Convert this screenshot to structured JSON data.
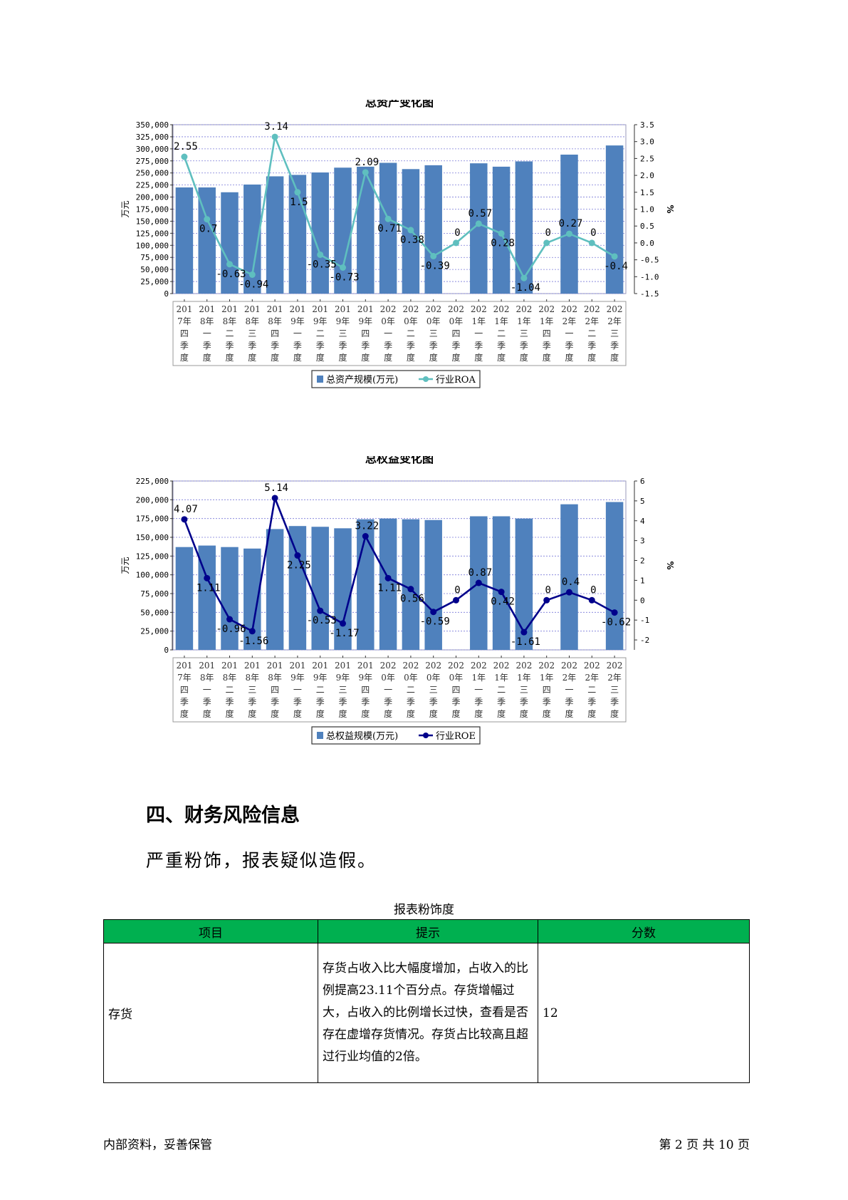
{
  "chart_data": [
    {
      "type": "bar",
      "title": "总资产变化图",
      "ylabel": "万元",
      "y2label": "%",
      "ylim": [
        0,
        350000
      ],
      "y2lim": [
        -1.5,
        3.5
      ],
      "y_ticks": [
        "0",
        "25,000",
        "50,000",
        "75,000",
        "100,000",
        "125,000",
        "150,000",
        "175,000",
        "200,000",
        "225,000",
        "250,000",
        "275,000",
        "300,000",
        "325,000",
        "350,000"
      ],
      "y2_ticks": [
        "-1.5",
        "-1.0",
        "-0.5",
        "0.0",
        "0.5",
        "1.0",
        "1.5",
        "2.0",
        "2.5",
        "3.0",
        "3.5"
      ],
      "categories": [
        [
          "201",
          "7年",
          "四",
          "季",
          "度"
        ],
        [
          "201",
          "8年",
          "一",
          "季",
          "度"
        ],
        [
          "201",
          "8年",
          "二",
          "季",
          "度"
        ],
        [
          "201",
          "8年",
          "三",
          "季",
          "度"
        ],
        [
          "201",
          "8年",
          "四",
          "季",
          "度"
        ],
        [
          "201",
          "9年",
          "一",
          "季",
          "度"
        ],
        [
          "201",
          "9年",
          "二",
          "季",
          "度"
        ],
        [
          "201",
          "9年",
          "三",
          "季",
          "度"
        ],
        [
          "201",
          "9年",
          "四",
          "季",
          "度"
        ],
        [
          "202",
          "0年",
          "一",
          "季",
          "度"
        ],
        [
          "202",
          "0年",
          "二",
          "季",
          "度"
        ],
        [
          "202",
          "0年",
          "三",
          "季",
          "度"
        ],
        [
          "202",
          "0年",
          "四",
          "季",
          "度"
        ],
        [
          "202",
          "1年",
          "一",
          "季",
          "度"
        ],
        [
          "202",
          "1年",
          "二",
          "季",
          "度"
        ],
        [
          "202",
          "1年",
          "三",
          "季",
          "度"
        ],
        [
          "202",
          "1年",
          "四",
          "季",
          "度"
        ],
        [
          "202",
          "2年",
          "一",
          "季",
          "度"
        ],
        [
          "202",
          "2年",
          "二",
          "季",
          "度"
        ],
        [
          "202",
          "2年",
          "三",
          "季",
          "度"
        ]
      ],
      "series": [
        {
          "name": "总资产规模(万元)",
          "type": "bar",
          "color": "#4f81bd",
          "values": [
            220000,
            220000,
            210000,
            226000,
            243000,
            246000,
            251000,
            261000,
            263000,
            271000,
            258000,
            266000,
            null,
            270000,
            263000,
            274000,
            null,
            288000,
            null,
            307000
          ]
        },
        {
          "name": "行业ROA",
          "type": "line",
          "axis": "right",
          "color": "#5fbfbf",
          "values": [
            2.55,
            0.7,
            -0.63,
            -0.94,
            3.14,
            1.5,
            -0.35,
            -0.73,
            2.09,
            0.71,
            0.38,
            -0.39,
            0,
            0.57,
            0.28,
            -1.04,
            0,
            0.27,
            0,
            -0.4
          ],
          "labels": [
            "2.55",
            "0.7",
            "-0.63",
            "-0.94",
            "3.14",
            "1.5",
            "-0.35",
            "-0.73",
            "2.09",
            "0.71",
            "0.38",
            "-0.39",
            "0",
            "0.57",
            "0.28",
            "-1.04",
            "0",
            "0.27",
            "0",
            "-0.4"
          ]
        }
      ],
      "legend": "bottom",
      "grid": true
    },
    {
      "type": "bar",
      "title": "总权益变化图",
      "ylabel": "万元",
      "y2label": "%",
      "ylim": [
        0,
        225000
      ],
      "y2lim": [
        -2.5,
        6
      ],
      "y_ticks": [
        "0",
        "25,000",
        "50,000",
        "75,000",
        "100,000",
        "125,000",
        "150,000",
        "175,000",
        "200,000",
        "225,000"
      ],
      "y2_ticks": [
        "-2",
        "-1",
        "0",
        "1",
        "2",
        "3",
        "4",
        "5",
        "6"
      ],
      "categories": [
        [
          "201",
          "7年",
          "四",
          "季",
          "度"
        ],
        [
          "201",
          "8年",
          "一",
          "季",
          "度"
        ],
        [
          "201",
          "8年",
          "二",
          "季",
          "度"
        ],
        [
          "201",
          "8年",
          "三",
          "季",
          "度"
        ],
        [
          "201",
          "8年",
          "四",
          "季",
          "度"
        ],
        [
          "201",
          "9年",
          "一",
          "季",
          "度"
        ],
        [
          "201",
          "9年",
          "二",
          "季",
          "度"
        ],
        [
          "201",
          "9年",
          "三",
          "季",
          "度"
        ],
        [
          "201",
          "9年",
          "四",
          "季",
          "度"
        ],
        [
          "202",
          "0年",
          "一",
          "季",
          "度"
        ],
        [
          "202",
          "0年",
          "二",
          "季",
          "度"
        ],
        [
          "202",
          "0年",
          "三",
          "季",
          "度"
        ],
        [
          "202",
          "0年",
          "四",
          "季",
          "度"
        ],
        [
          "202",
          "1年",
          "一",
          "季",
          "度"
        ],
        [
          "202",
          "1年",
          "二",
          "季",
          "度"
        ],
        [
          "202",
          "1年",
          "三",
          "季",
          "度"
        ],
        [
          "202",
          "1年",
          "四",
          "季",
          "度"
        ],
        [
          "202",
          "2年",
          "一",
          "季",
          "度"
        ],
        [
          "202",
          "2年",
          "二",
          "季",
          "度"
        ],
        [
          "202",
          "2年",
          "三",
          "季",
          "度"
        ]
      ],
      "series": [
        {
          "name": "总权益规模(万元)",
          "type": "bar",
          "color": "#4f81bd",
          "values": [
            137000,
            139000,
            137000,
            135000,
            161000,
            165000,
            164000,
            162000,
            174000,
            175000,
            174000,
            173000,
            null,
            178000,
            178000,
            175000,
            null,
            194000,
            null,
            197000
          ]
        },
        {
          "name": "行业ROE",
          "type": "line",
          "axis": "right",
          "color": "#00008b",
          "values": [
            4.07,
            1.11,
            -0.96,
            -1.56,
            5.14,
            2.25,
            -0.53,
            -1.17,
            3.22,
            1.11,
            0.56,
            -0.59,
            0,
            0.87,
            0.42,
            -1.61,
            0,
            0.4,
            0,
            -0.62
          ],
          "labels": [
            "4.07",
            "1.11",
            "-0.96",
            "-1.56",
            "5.14",
            "2.25",
            "-0.53",
            "-1.17",
            "3.22",
            "1.11",
            "0.56",
            "-0.59",
            "0",
            "0.87",
            "0.42",
            "-1.61",
            "0",
            "0.4",
            "0",
            "-0.62"
          ]
        }
      ],
      "legend": "bottom",
      "grid": true
    }
  ],
  "section": {
    "heading": "四、财务风险信息",
    "paragraph": "严重粉饰，报表疑似造假。"
  },
  "table": {
    "caption": "报表粉饰度",
    "headers": [
      "项目",
      "提示",
      "分数"
    ],
    "header_color": "#00b050",
    "rows": [
      {
        "item": "存货",
        "tip": "存货占收入比大幅度增加，占收入的比例提高23.11个百分点。存货增幅过大，占收入的比例增长过快，查看是否存在虚增存货情况。存货占比较高且超过行业均值的2倍。",
        "score": "12"
      }
    ]
  },
  "footer": {
    "left": "内部资料，妥善保管",
    "right": "第 2 页  共 10 页"
  }
}
